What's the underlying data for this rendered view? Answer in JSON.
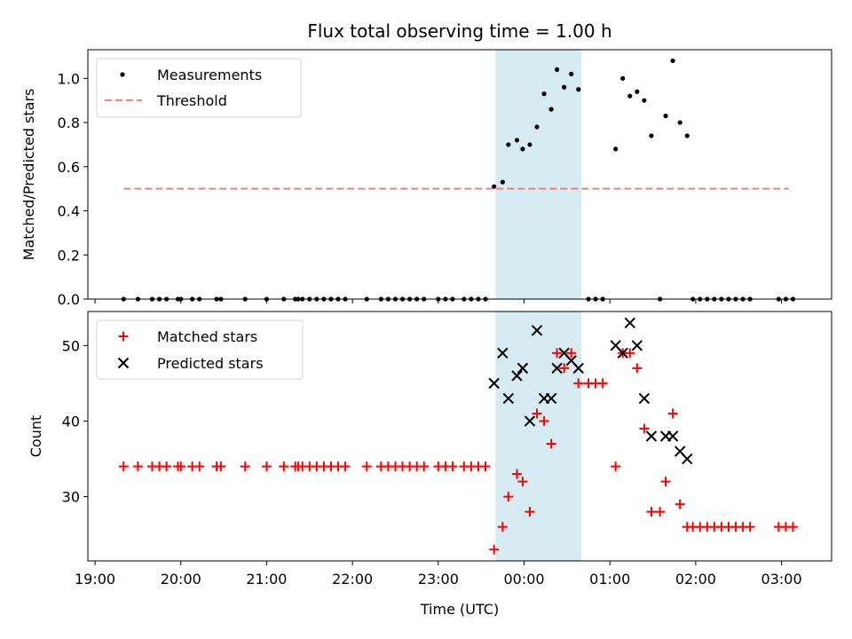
{
  "chart_data": [
    {
      "type": "scatter",
      "title": "Flux total observing time = 1.00 h",
      "ylabel": "Matched/Predicted stars",
      "xlabel": "",
      "ylim": [
        0,
        1.13
      ],
      "yticks": [
        "0.0",
        "0.2",
        "0.4",
        "0.6",
        "0.8",
        "1.0"
      ],
      "legend_position": "top-left",
      "highlight_interval": [
        "23:40",
        "00:40"
      ],
      "series": [
        {
          "name": "Measurements",
          "marker": "dot",
          "color": "#000000",
          "points": [
            [
              "19:20",
              0
            ],
            [
              "19:30",
              0
            ],
            [
              "19:40",
              0
            ],
            [
              "19:45",
              0
            ],
            [
              "19:50",
              0
            ],
            [
              "19:58",
              0
            ],
            [
              "20:00",
              0
            ],
            [
              "20:08",
              0
            ],
            [
              "20:13",
              0
            ],
            [
              "20:25",
              0
            ],
            [
              "20:28",
              0
            ],
            [
              "20:45",
              0
            ],
            [
              "21:00",
              0
            ],
            [
              "21:12",
              0
            ],
            [
              "21:20",
              0
            ],
            [
              "21:22",
              0
            ],
            [
              "21:25",
              0
            ],
            [
              "21:30",
              0
            ],
            [
              "21:35",
              0
            ],
            [
              "21:40",
              0
            ],
            [
              "21:45",
              0
            ],
            [
              "21:50",
              0
            ],
            [
              "21:55",
              0
            ],
            [
              "22:10",
              0
            ],
            [
              "22:20",
              0
            ],
            [
              "22:25",
              0
            ],
            [
              "22:30",
              0
            ],
            [
              "22:35",
              0
            ],
            [
              "22:40",
              0
            ],
            [
              "22:45",
              0
            ],
            [
              "22:50",
              0
            ],
            [
              "23:00",
              0
            ],
            [
              "23:05",
              0
            ],
            [
              "23:10",
              0
            ],
            [
              "23:18",
              0
            ],
            [
              "23:23",
              0
            ],
            [
              "23:28",
              0
            ],
            [
              "23:33",
              0
            ],
            [
              "23:39",
              0.51
            ],
            [
              "23:45",
              0.53
            ],
            [
              "23:49",
              0.7
            ],
            [
              "23:55",
              0.72
            ],
            [
              "23:59",
              0.68
            ],
            [
              "00:04",
              0.7
            ],
            [
              "00:09",
              0.78
            ],
            [
              "00:14",
              0.93
            ],
            [
              "00:19",
              0.86
            ],
            [
              "00:23",
              1.04
            ],
            [
              "00:28",
              0.96
            ],
            [
              "00:33",
              1.02
            ],
            [
              "00:38",
              0.95
            ],
            [
              "00:45",
              0
            ],
            [
              "00:50",
              0
            ],
            [
              "00:55",
              0
            ],
            [
              "01:04",
              0.68
            ],
            [
              "01:09",
              1.0
            ],
            [
              "01:14",
              0.92
            ],
            [
              "01:19",
              0.94
            ],
            [
              "01:24",
              0.9
            ],
            [
              "01:29",
              0.74
            ],
            [
              "01:39",
              0.83
            ],
            [
              "01:44",
              1.08
            ],
            [
              "01:49",
              0.8
            ],
            [
              "01:54",
              0.74
            ],
            [
              "01:35",
              0
            ],
            [
              "01:58",
              0
            ],
            [
              "02:03",
              0
            ],
            [
              "02:08",
              0
            ],
            [
              "02:13",
              0
            ],
            [
              "02:18",
              0
            ],
            [
              "02:23",
              0
            ],
            [
              "02:28",
              0
            ],
            [
              "02:33",
              0
            ],
            [
              "02:38",
              0
            ],
            [
              "02:58",
              0
            ],
            [
              "03:03",
              0
            ],
            [
              "03:08",
              0
            ]
          ]
        },
        {
          "name": "Threshold",
          "marker": "dashed-line",
          "color": "#f37f7f",
          "points": [
            [
              "19:20",
              0.5
            ],
            [
              "03:05",
              0.5
            ]
          ]
        }
      ]
    },
    {
      "type": "scatter",
      "title": "",
      "ylabel": "Count",
      "xlabel": "Time (UTC)",
      "ylim": [
        21.5,
        54.5
      ],
      "yticks": [
        "30",
        "40",
        "50"
      ],
      "xticks": [
        "19:00",
        "20:00",
        "21:00",
        "22:00",
        "23:00",
        "00:00",
        "01:00",
        "02:00",
        "03:00"
      ],
      "legend_position": "top-left",
      "highlight_interval": [
        "23:40",
        "00:40"
      ],
      "series": [
        {
          "name": "Matched stars",
          "marker": "plus",
          "color": "#ff0000",
          "points": [
            [
              "19:20",
              34
            ],
            [
              "19:30",
              34
            ],
            [
              "19:40",
              34
            ],
            [
              "19:45",
              34
            ],
            [
              "19:50",
              34
            ],
            [
              "19:58",
              34
            ],
            [
              "20:00",
              34
            ],
            [
              "20:08",
              34
            ],
            [
              "20:13",
              34
            ],
            [
              "20:25",
              34
            ],
            [
              "20:28",
              34
            ],
            [
              "20:45",
              34
            ],
            [
              "21:00",
              34
            ],
            [
              "21:12",
              34
            ],
            [
              "21:20",
              34
            ],
            [
              "21:22",
              34
            ],
            [
              "21:25",
              34
            ],
            [
              "21:30",
              34
            ],
            [
              "21:35",
              34
            ],
            [
              "21:40",
              34
            ],
            [
              "21:45",
              34
            ],
            [
              "21:50",
              34
            ],
            [
              "21:55",
              34
            ],
            [
              "22:10",
              34
            ],
            [
              "22:20",
              34
            ],
            [
              "22:25",
              34
            ],
            [
              "22:30",
              34
            ],
            [
              "22:35",
              34
            ],
            [
              "22:40",
              34
            ],
            [
              "22:45",
              34
            ],
            [
              "22:50",
              34
            ],
            [
              "23:00",
              34
            ],
            [
              "23:05",
              34
            ],
            [
              "23:10",
              34
            ],
            [
              "23:18",
              34
            ],
            [
              "23:23",
              34
            ],
            [
              "23:28",
              34
            ],
            [
              "23:33",
              34
            ],
            [
              "23:39",
              23
            ],
            [
              "23:45",
              26
            ],
            [
              "23:49",
              30
            ],
            [
              "23:55",
              33
            ],
            [
              "23:59",
              32
            ],
            [
              "00:04",
              28
            ],
            [
              "00:09",
              41
            ],
            [
              "00:14",
              40
            ],
            [
              "00:19",
              37
            ],
            [
              "00:23",
              49
            ],
            [
              "00:28",
              47
            ],
            [
              "00:33",
              49
            ],
            [
              "00:38",
              45
            ],
            [
              "00:45",
              45
            ],
            [
              "00:50",
              45
            ],
            [
              "00:55",
              45
            ],
            [
              "01:04",
              34
            ],
            [
              "01:09",
              49
            ],
            [
              "01:14",
              49
            ],
            [
              "01:19",
              47
            ],
            [
              "01:24",
              39
            ],
            [
              "01:29",
              28
            ],
            [
              "01:35",
              28
            ],
            [
              "01:39",
              32
            ],
            [
              "01:44",
              41
            ],
            [
              "01:49",
              29
            ],
            [
              "01:54",
              26
            ],
            [
              "01:58",
              26
            ],
            [
              "02:03",
              26
            ],
            [
              "02:08",
              26
            ],
            [
              "02:13",
              26
            ],
            [
              "02:18",
              26
            ],
            [
              "02:23",
              26
            ],
            [
              "02:28",
              26
            ],
            [
              "02:33",
              26
            ],
            [
              "02:38",
              26
            ],
            [
              "02:58",
              26
            ],
            [
              "03:03",
              26
            ],
            [
              "03:08",
              26
            ]
          ]
        },
        {
          "name": "Predicted stars",
          "marker": "x",
          "color": "#000000",
          "points": [
            [
              "23:39",
              45
            ],
            [
              "23:45",
              49
            ],
            [
              "23:49",
              43
            ],
            [
              "23:55",
              46
            ],
            [
              "23:59",
              47
            ],
            [
              "00:04",
              40
            ],
            [
              "00:09",
              52
            ],
            [
              "00:14",
              43
            ],
            [
              "00:19",
              43
            ],
            [
              "00:23",
              47
            ],
            [
              "00:28",
              49
            ],
            [
              "00:33",
              48
            ],
            [
              "00:38",
              47
            ],
            [
              "01:04",
              50
            ],
            [
              "01:09",
              49
            ],
            [
              "01:14",
              53
            ],
            [
              "01:19",
              50
            ],
            [
              "01:24",
              43
            ],
            [
              "01:29",
              38
            ],
            [
              "01:39",
              38
            ],
            [
              "01:44",
              38
            ],
            [
              "01:49",
              36
            ],
            [
              "01:54",
              35
            ]
          ]
        }
      ]
    }
  ]
}
